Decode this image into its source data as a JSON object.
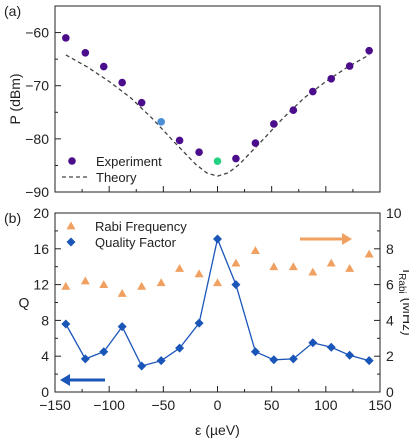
{
  "panel_a": {
    "label": "(a)",
    "legend": {
      "experiment": "Experiment",
      "theory": "Theory"
    }
  },
  "panel_b": {
    "label": "(b)",
    "legend": {
      "rabi": "Rabi Frequency",
      "quality": "Quality Factor"
    }
  },
  "chart_data": [
    {
      "type": "scatter",
      "panel": "(a)",
      "ylabel": "P (dBm)",
      "xlim": [
        -150,
        150
      ],
      "ylim": [
        -90,
        -55
      ],
      "yticks": [
        -90,
        -80,
        -70,
        -60
      ],
      "xticks": [
        -150,
        -100,
        -50,
        0,
        50,
        100,
        150
      ],
      "legend_position": "bottom-left",
      "series": [
        {
          "name": "Experiment",
          "marker": "circle",
          "color": "#4b0d8c",
          "x": [
            -140,
            -122,
            -105,
            -88,
            -70,
            -52,
            -35,
            -17,
            0,
            17,
            35,
            52,
            70,
            88,
            105,
            122,
            140
          ],
          "y": [
            -61,
            -63.8,
            -66.4,
            -69.4,
            -73.2,
            -76.8,
            -80.3,
            -82.5,
            -84.2,
            -83.7,
            -80.8,
            -77.2,
            -74.6,
            -71.1,
            -68.7,
            -66.3,
            -63.4
          ],
          "highlight": [
            {
              "x": -52,
              "y": -76.8,
              "color": "#4a8ed6"
            },
            {
              "x": 0,
              "y": -84.2,
              "color": "#23d180"
            }
          ]
        },
        {
          "name": "Theory",
          "style": "dashed",
          "color": "#444444",
          "x": [
            -140,
            -120,
            -100,
            -80,
            -60,
            -40,
            -20,
            -10,
            0,
            10,
            20,
            40,
            60,
            80,
            100,
            120,
            140
          ],
          "y": [
            -64.2,
            -66.5,
            -69.2,
            -72.3,
            -76.2,
            -80.6,
            -84.8,
            -86.4,
            -87.0,
            -86.4,
            -84.8,
            -80.6,
            -76.2,
            -72.3,
            -69.2,
            -66.5,
            -64.2
          ]
        }
      ]
    },
    {
      "type": "line",
      "panel": "(b)",
      "xlabel": "ε (µeV)",
      "ylabel": "Q",
      "y2label": "f",
      "y2label_sub": "Rabi",
      "y2label_unit": " (MHz)",
      "xlim": [
        -150,
        150
      ],
      "ylim": [
        0,
        20
      ],
      "y2lim": [
        0,
        10
      ],
      "xticks": [
        -150,
        -100,
        -50,
        0,
        50,
        100,
        150
      ],
      "yticks": [
        0,
        4,
        8,
        12,
        16,
        20
      ],
      "y2ticks": [
        0,
        2,
        4,
        6,
        8,
        10
      ],
      "legend_position": "top-left",
      "series": [
        {
          "name": "Rabi Frequency",
          "axis": "right",
          "marker": "triangle",
          "color": "#f0a060",
          "x": [
            -140,
            -122,
            -105,
            -88,
            -70,
            -52,
            -35,
            -17,
            0,
            17,
            35,
            52,
            70,
            88,
            105,
            122,
            140
          ],
          "y": [
            5.9,
            6.2,
            6.0,
            5.5,
            5.9,
            6.1,
            6.9,
            6.6,
            6.1,
            7.2,
            7.9,
            7.0,
            7.0,
            6.7,
            7.2,
            6.9,
            7.7
          ]
        },
        {
          "name": "Quality Factor",
          "axis": "left",
          "marker": "diamond",
          "color": "#1a55b8",
          "x": [
            -140,
            -122,
            -105,
            -88,
            -70,
            -52,
            -35,
            -17,
            0,
            17,
            35,
            52,
            70,
            88,
            105,
            122,
            140
          ],
          "y": [
            7.6,
            3.7,
            4.5,
            7.3,
            2.9,
            3.5,
            4.9,
            7.7,
            17.1,
            12.0,
            4.5,
            3.6,
            3.7,
            5.5,
            5.0,
            4.1,
            3.5
          ]
        }
      ],
      "arrows": [
        {
          "points_to": "left-axis",
          "color": "#1a55b8",
          "direction": "left"
        },
        {
          "points_to": "right-axis",
          "color": "#f0a060",
          "direction": "right"
        }
      ]
    }
  ]
}
